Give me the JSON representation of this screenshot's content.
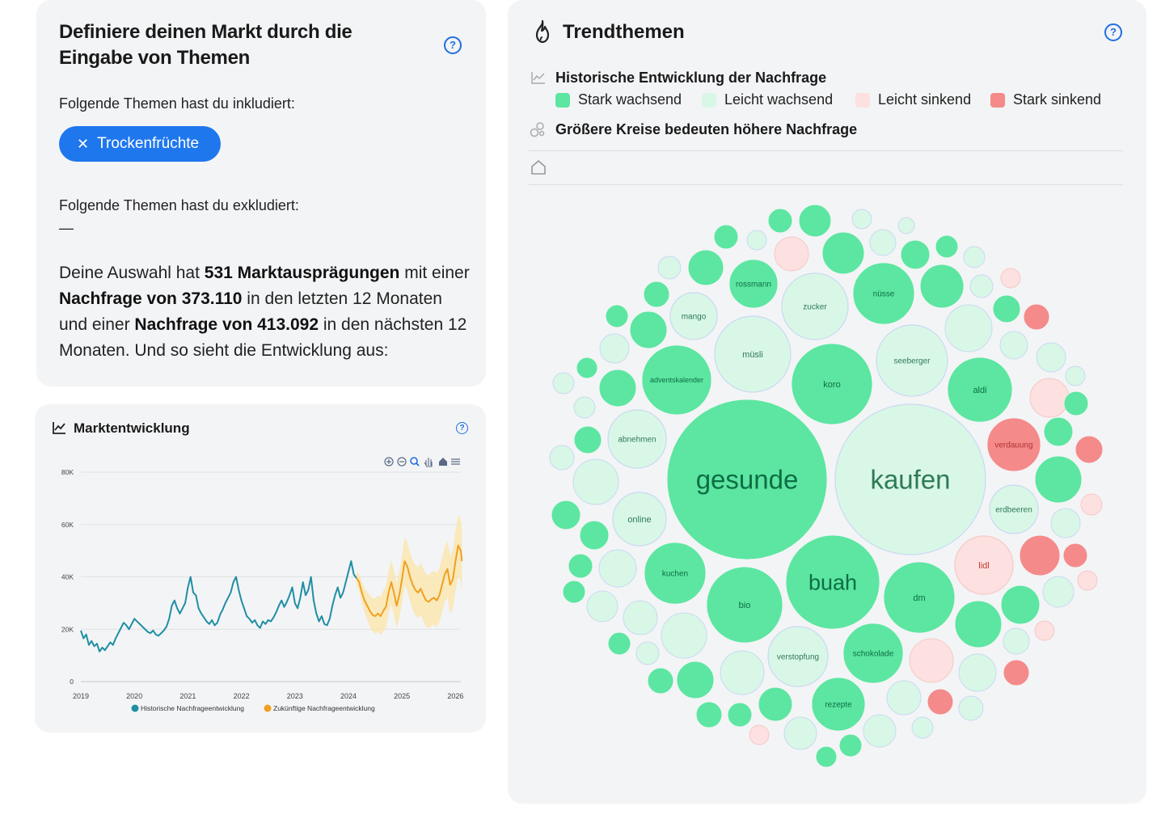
{
  "define": {
    "title": "Definiere deinen Markt durch die Eingabe von Themen",
    "included_label": "Folgende Themen hast du inkludiert:",
    "included_chip": "Trockenfrüchte",
    "excluded_label": "Folgende Themen hast du exkludiert:",
    "excluded_value": "—",
    "summary": {
      "p1": "Deine Auswahl hat ",
      "b1": "531 Marktausprägungen",
      "p2": " mit einer ",
      "b2": "Nachfrage von 373.110",
      "p3": " in den letzten 12 Monaten und einer ",
      "b3": "Nachfrage von 413.092",
      "p4": " in den nächsten 12 Monaten. Und so sieht die Entwicklung aus:"
    }
  },
  "help_glyph": "?",
  "market": {
    "title": "Marktentwicklung",
    "toolbar": [
      "zoom-in-icon",
      "zoom-out-icon",
      "zoom-select-icon",
      "pan-icon",
      "home-icon",
      "menu-icon"
    ]
  },
  "chart_data": {
    "type": "line",
    "y_ticks": [
      "0",
      "20K",
      "40K",
      "60K",
      "80K"
    ],
    "ylim": [
      0,
      80000
    ],
    "x_ticks": [
      "2019",
      "2020",
      "2021",
      "2022",
      "2023",
      "2024",
      "2025",
      "2026"
    ],
    "series": [
      {
        "name": "Historische Nachfrageentwicklung",
        "color": "#1f8ea3",
        "points": [
          [
            2019.0,
            19500
          ],
          [
            2019.05,
            16500
          ],
          [
            2019.1,
            18000
          ],
          [
            2019.15,
            14000
          ],
          [
            2019.2,
            15500
          ],
          [
            2019.25,
            13500
          ],
          [
            2019.3,
            14500
          ],
          [
            2019.35,
            11500
          ],
          [
            2019.4,
            13000
          ],
          [
            2019.45,
            12000
          ],
          [
            2019.5,
            13500
          ],
          [
            2019.55,
            15000
          ],
          [
            2019.6,
            14000
          ],
          [
            2019.65,
            16500
          ],
          [
            2019.7,
            18500
          ],
          [
            2019.75,
            20500
          ],
          [
            2019.8,
            22500
          ],
          [
            2019.85,
            21500
          ],
          [
            2019.9,
            20000
          ],
          [
            2019.95,
            22000
          ],
          [
            2020.0,
            24000
          ],
          [
            2020.05,
            23000
          ],
          [
            2020.1,
            22000
          ],
          [
            2020.15,
            21000
          ],
          [
            2020.2,
            20000
          ],
          [
            2020.25,
            19000
          ],
          [
            2020.3,
            18500
          ],
          [
            2020.35,
            19500
          ],
          [
            2020.4,
            18000
          ],
          [
            2020.45,
            17500
          ],
          [
            2020.5,
            18500
          ],
          [
            2020.55,
            19500
          ],
          [
            2020.6,
            21000
          ],
          [
            2020.65,
            24000
          ],
          [
            2020.7,
            29000
          ],
          [
            2020.75,
            31000
          ],
          [
            2020.8,
            28000
          ],
          [
            2020.85,
            26000
          ],
          [
            2020.9,
            28000
          ],
          [
            2020.95,
            30000
          ],
          [
            2021.0,
            36000
          ],
          [
            2021.05,
            40000
          ],
          [
            2021.1,
            34000
          ],
          [
            2021.15,
            33000
          ],
          [
            2021.2,
            28000
          ],
          [
            2021.25,
            26000
          ],
          [
            2021.3,
            24500
          ],
          [
            2021.35,
            23000
          ],
          [
            2021.4,
            22000
          ],
          [
            2021.45,
            23500
          ],
          [
            2021.5,
            21500
          ],
          [
            2021.55,
            22500
          ],
          [
            2021.6,
            25500
          ],
          [
            2021.65,
            27500
          ],
          [
            2021.7,
            30000
          ],
          [
            2021.75,
            32000
          ],
          [
            2021.8,
            34000
          ],
          [
            2021.85,
            38000
          ],
          [
            2021.9,
            40000
          ],
          [
            2021.95,
            35000
          ],
          [
            2022.0,
            31000
          ],
          [
            2022.05,
            28000
          ],
          [
            2022.1,
            25000
          ],
          [
            2022.15,
            24000
          ],
          [
            2022.2,
            22500
          ],
          [
            2022.25,
            23500
          ],
          [
            2022.3,
            21500
          ],
          [
            2022.35,
            20500
          ],
          [
            2022.4,
            23000
          ],
          [
            2022.45,
            22000
          ],
          [
            2022.5,
            23500
          ],
          [
            2022.55,
            23000
          ],
          [
            2022.6,
            24500
          ],
          [
            2022.65,
            26500
          ],
          [
            2022.7,
            29000
          ],
          [
            2022.75,
            31000
          ],
          [
            2022.8,
            28500
          ],
          [
            2022.85,
            30500
          ],
          [
            2022.9,
            33000
          ],
          [
            2022.95,
            36000
          ],
          [
            2023.0,
            30000
          ],
          [
            2023.05,
            28000
          ],
          [
            2023.1,
            32000
          ],
          [
            2023.15,
            38000
          ],
          [
            2023.2,
            33000
          ],
          [
            2023.25,
            35000
          ],
          [
            2023.3,
            40000
          ],
          [
            2023.35,
            31000
          ],
          [
            2023.4,
            26000
          ],
          [
            2023.45,
            23000
          ],
          [
            2023.5,
            25000
          ],
          [
            2023.55,
            22000
          ],
          [
            2023.6,
            21500
          ],
          [
            2023.65,
            24000
          ],
          [
            2023.7,
            29000
          ],
          [
            2023.75,
            33000
          ],
          [
            2023.8,
            36000
          ],
          [
            2023.85,
            32000
          ],
          [
            2023.9,
            34000
          ],
          [
            2023.95,
            38000
          ],
          [
            2024.0,
            42000
          ],
          [
            2024.05,
            46000
          ],
          [
            2024.1,
            41000
          ],
          [
            2024.15,
            39500
          ]
        ]
      },
      {
        "name": "Zukünftige Nachfrageentwicklung",
        "color": "#f0a020",
        "points": [
          [
            2024.15,
            39500
          ],
          [
            2024.2,
            38000
          ],
          [
            2024.25,
            34000
          ],
          [
            2024.3,
            31000
          ],
          [
            2024.35,
            29000
          ],
          [
            2024.4,
            27000
          ],
          [
            2024.45,
            25500
          ],
          [
            2024.5,
            25000
          ],
          [
            2024.55,
            26000
          ],
          [
            2024.6,
            25000
          ],
          [
            2024.65,
            27000
          ],
          [
            2024.7,
            28500
          ],
          [
            2024.75,
            34000
          ],
          [
            2024.8,
            38000
          ],
          [
            2024.85,
            34000
          ],
          [
            2024.9,
            29000
          ],
          [
            2024.95,
            33000
          ],
          [
            2025.0,
            39000
          ],
          [
            2025.05,
            46000
          ],
          [
            2025.1,
            44000
          ],
          [
            2025.15,
            40000
          ],
          [
            2025.2,
            37000
          ],
          [
            2025.25,
            35000
          ],
          [
            2025.3,
            34000
          ],
          [
            2025.35,
            35500
          ],
          [
            2025.4,
            33000
          ],
          [
            2025.45,
            31000
          ],
          [
            2025.5,
            30500
          ],
          [
            2025.55,
            31500
          ],
          [
            2025.6,
            32000
          ],
          [
            2025.65,
            31000
          ],
          [
            2025.7,
            33000
          ],
          [
            2025.75,
            37000
          ],
          [
            2025.8,
            41000
          ],
          [
            2025.85,
            43000
          ],
          [
            2025.9,
            37000
          ],
          [
            2025.95,
            39000
          ],
          [
            2026.0,
            46000
          ],
          [
            2026.05,
            52000
          ],
          [
            2026.1,
            50000
          ],
          [
            2026.12,
            46000
          ]
        ]
      }
    ],
    "band_halfwidth": [
      [
        2024.15,
        2500
      ],
      [
        2024.4,
        6000
      ],
      [
        2024.7,
        8000
      ],
      [
        2025.0,
        9000
      ],
      [
        2025.4,
        10000
      ],
      [
        2025.8,
        10500
      ],
      [
        2026.12,
        12000
      ]
    ],
    "legend": [
      "Historische Nachfrageentwicklung",
      "Zukünftige Nachfrageentwicklung"
    ],
    "legend_placement": "bottom-center",
    "grid": true
  },
  "trend": {
    "title": "Trendthemen",
    "legend_title": "Historische Entwicklung der Nachfrage",
    "legend": [
      {
        "label": "Stark wachsend",
        "color": "#5ce6a1"
      },
      {
        "label": "Leicht wachsend",
        "color": "#d9f7e6"
      },
      {
        "label": "Leicht sinkend",
        "color": "#fde0e0"
      },
      {
        "label": "Stark sinkend",
        "color": "#f58a8a"
      }
    ],
    "size_note": "Größere Kreise bedeuten höhere Nachfrage",
    "bubbles": [
      {
        "label": "gesunde",
        "cat": "sg"
      },
      {
        "label": "kaufen",
        "cat": "lg"
      },
      {
        "label": "buah",
        "cat": "sg"
      },
      {
        "label": "koro",
        "cat": "sg"
      },
      {
        "label": "müsli",
        "cat": "lg"
      },
      {
        "label": "seeberger",
        "cat": "lg"
      },
      {
        "label": "aldi",
        "cat": "sg"
      },
      {
        "label": "adventskalender",
        "cat": "sg"
      },
      {
        "label": "abnehmen",
        "cat": "lg"
      },
      {
        "label": "online",
        "cat": "lg"
      },
      {
        "label": "kuchen",
        "cat": "sg"
      },
      {
        "label": "bio",
        "cat": "sg"
      },
      {
        "label": "dm",
        "cat": "sg"
      },
      {
        "label": "schokolade",
        "cat": "sg"
      },
      {
        "label": "rezepte",
        "cat": "sg"
      },
      {
        "label": "verstopfung",
        "cat": "lg"
      },
      {
        "label": "lidl",
        "cat": "ls"
      },
      {
        "label": "verdauung",
        "cat": "ss"
      },
      {
        "label": "erdbeeren",
        "cat": "lg"
      },
      {
        "label": "zucker",
        "cat": "lg"
      },
      {
        "label": "nüsse",
        "cat": "sg"
      },
      {
        "label": "rossmann",
        "cat": "sg"
      },
      {
        "label": "mango",
        "cat": "lg"
      }
    ]
  }
}
